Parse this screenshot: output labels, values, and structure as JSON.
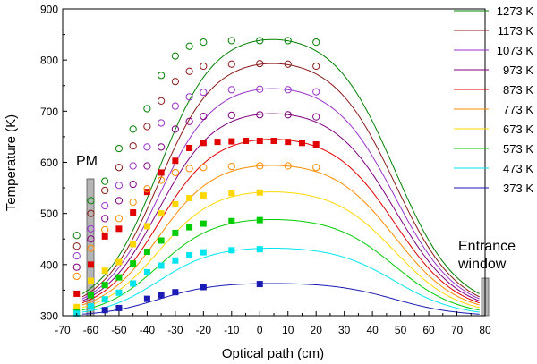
{
  "chart_data": {
    "type": "line",
    "title": "",
    "xlabel": "Optical path (cm)",
    "ylabel": "Temperature (K)",
    "xlim": [
      -70,
      80
    ],
    "ylim": [
      300,
      900
    ],
    "x_ticks": [
      -70,
      -60,
      -50,
      -40,
      -30,
      -20,
      -10,
      0,
      10,
      20,
      30,
      40,
      50,
      60,
      70,
      80
    ],
    "y_ticks": [
      300,
      400,
      500,
      600,
      700,
      800,
      900
    ],
    "grid": false,
    "legend_position": "top-right",
    "annotations": [
      {
        "id": "pm",
        "text": "PM",
        "x": -64
      },
      {
        "id": "entrance",
        "text": "Entrance window",
        "lines": [
          "Entrance",
          "window"
        ],
        "x": 79
      }
    ],
    "series": [
      {
        "name": "1273 K",
        "color": "#008000",
        "wall": 343,
        "peak": 840,
        "marker": "open-circle",
        "points": [
          [
            -65,
            457
          ],
          [
            -60,
            525
          ],
          [
            -55,
            563
          ],
          [
            -50,
            627
          ],
          [
            -45,
            665
          ],
          [
            -40,
            705
          ],
          [
            -35,
            770
          ],
          [
            -30,
            808
          ],
          [
            -25,
            827
          ],
          [
            -20,
            835
          ],
          [
            -10,
            838
          ],
          [
            0,
            838
          ],
          [
            10,
            838
          ],
          [
            20,
            835
          ]
        ]
      },
      {
        "name": "1173 K",
        "color": "#8b1a1a",
        "wall": 337,
        "peak": 793,
        "marker": "open-circle",
        "points": [
          [
            -65,
            436
          ],
          [
            -60,
            500
          ],
          [
            -55,
            545
          ],
          [
            -50,
            590
          ],
          [
            -45,
            632
          ],
          [
            -40,
            670
          ],
          [
            -35,
            720
          ],
          [
            -30,
            758
          ],
          [
            -25,
            778
          ],
          [
            -20,
            788
          ],
          [
            -10,
            792
          ],
          [
            0,
            793
          ],
          [
            10,
            792
          ],
          [
            20,
            788
          ]
        ]
      },
      {
        "name": "1073 K",
        "color": "#9932cc",
        "wall": 333,
        "peak": 744,
        "marker": "open-circle",
        "points": [
          [
            -65,
            417
          ],
          [
            -60,
            470
          ],
          [
            -55,
            515
          ],
          [
            -50,
            555
          ],
          [
            -45,
            593
          ],
          [
            -40,
            630
          ],
          [
            -35,
            677
          ],
          [
            -30,
            710
          ],
          [
            -25,
            728
          ],
          [
            -20,
            737
          ],
          [
            -10,
            742
          ],
          [
            0,
            743
          ],
          [
            10,
            742
          ],
          [
            20,
            738
          ]
        ]
      },
      {
        "name": "973 K",
        "color": "#800080",
        "wall": 329,
        "peak": 695,
        "marker": "open-circle",
        "points": [
          [
            -65,
            395
          ],
          [
            -60,
            450
          ],
          [
            -55,
            490
          ],
          [
            -50,
            525
          ],
          [
            -45,
            557
          ],
          [
            -40,
            593
          ],
          [
            -35,
            630
          ],
          [
            -30,
            665
          ],
          [
            -25,
            680
          ],
          [
            -20,
            690
          ],
          [
            -10,
            692
          ],
          [
            0,
            693
          ],
          [
            10,
            693
          ],
          [
            20,
            689
          ]
        ]
      },
      {
        "name": "873 K",
        "color": "#e00000",
        "wall": 325,
        "peak": 645,
        "marker": "filled-square",
        "points": [
          [
            -65,
            343
          ],
          [
            -60,
            400
          ],
          [
            -55,
            455
          ],
          [
            -50,
            470
          ],
          [
            -45,
            502
          ],
          [
            -40,
            542
          ],
          [
            -35,
            580
          ],
          [
            -30,
            603
          ],
          [
            -25,
            628
          ],
          [
            -20,
            638
          ],
          [
            -15,
            640
          ],
          [
            -10,
            641
          ],
          [
            -5,
            642
          ],
          [
            0,
            642
          ],
          [
            5,
            642
          ],
          [
            10,
            640
          ],
          [
            15,
            638
          ],
          [
            20,
            635
          ]
        ]
      },
      {
        "name": "773 K",
        "color": "#ff8c00",
        "wall": 321,
        "peak": 594,
        "marker": "open-circle",
        "points": [
          [
            -65,
            377
          ],
          [
            -60,
            432
          ],
          [
            -55,
            468
          ],
          [
            -50,
            490
          ],
          [
            -45,
            522
          ],
          [
            -40,
            548
          ],
          [
            -35,
            565
          ],
          [
            -30,
            580
          ],
          [
            -25,
            588
          ],
          [
            -20,
            590
          ],
          [
            -10,
            592
          ],
          [
            0,
            593
          ],
          [
            10,
            593
          ],
          [
            20,
            590
          ]
        ]
      },
      {
        "name": "673 K",
        "color": "#ffd700",
        "wall": 316,
        "peak": 542,
        "marker": "filled-square",
        "points": [
          [
            -65,
            317
          ],
          [
            -60,
            368
          ],
          [
            -55,
            388
          ],
          [
            -50,
            405
          ],
          [
            -45,
            440
          ],
          [
            -40,
            475
          ],
          [
            -35,
            500
          ],
          [
            -30,
            518
          ],
          [
            -25,
            530
          ],
          [
            -20,
            535
          ],
          [
            -10,
            540
          ],
          [
            0,
            541
          ]
        ]
      },
      {
        "name": "573 K",
        "color": "#00cc00",
        "wall": 311,
        "peak": 488,
        "marker": "filled-square",
        "points": [
          [
            -65,
            307
          ],
          [
            -60,
            340
          ],
          [
            -55,
            360
          ],
          [
            -50,
            375
          ],
          [
            -45,
            402
          ],
          [
            -40,
            425
          ],
          [
            -35,
            447
          ],
          [
            -30,
            462
          ],
          [
            -25,
            473
          ],
          [
            -20,
            480
          ],
          [
            -10,
            485
          ],
          [
            0,
            487
          ]
        ]
      },
      {
        "name": "473 K",
        "color": "#00e5ee",
        "wall": 307,
        "peak": 432,
        "marker": "filled-square",
        "points": [
          [
            -65,
            304
          ],
          [
            -60,
            318
          ],
          [
            -55,
            332
          ],
          [
            -50,
            345
          ],
          [
            -45,
            363
          ],
          [
            -40,
            385
          ],
          [
            -35,
            398
          ],
          [
            -30,
            408
          ],
          [
            -25,
            418
          ],
          [
            -20,
            424
          ],
          [
            -10,
            428
          ],
          [
            0,
            430
          ]
        ]
      },
      {
        "name": "373 K",
        "color": "#1a1ab4",
        "wall": 303,
        "peak": 363,
        "marker": "filled-square",
        "points": [
          [
            -55,
            311
          ],
          [
            -50,
            315
          ],
          [
            -40,
            333
          ],
          [
            -35,
            340
          ],
          [
            -30,
            346
          ],
          [
            -20,
            356
          ],
          [
            0,
            362
          ]
        ]
      }
    ]
  }
}
